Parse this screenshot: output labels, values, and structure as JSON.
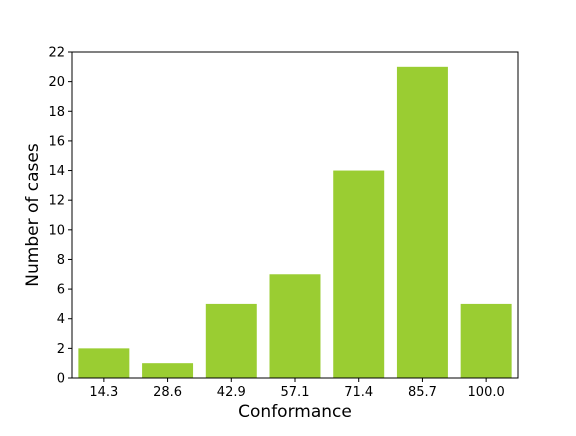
{
  "chart_data": {
    "type": "bar",
    "title": "",
    "xlabel": "Conformance",
    "ylabel": "Number of cases",
    "categories": [
      "14.3",
      "28.6",
      "42.9",
      "57.1",
      "71.4",
      "85.7",
      "100.0"
    ],
    "values": [
      2,
      1,
      5,
      7,
      14,
      21,
      5
    ],
    "ylim": [
      0,
      22
    ],
    "yticks": [
      "0",
      "2",
      "4",
      "6",
      "8",
      "10",
      "12",
      "14",
      "16",
      "18",
      "20",
      "22"
    ],
    "grid": false,
    "legend": "none",
    "bar_color": "#9acd32"
  }
}
